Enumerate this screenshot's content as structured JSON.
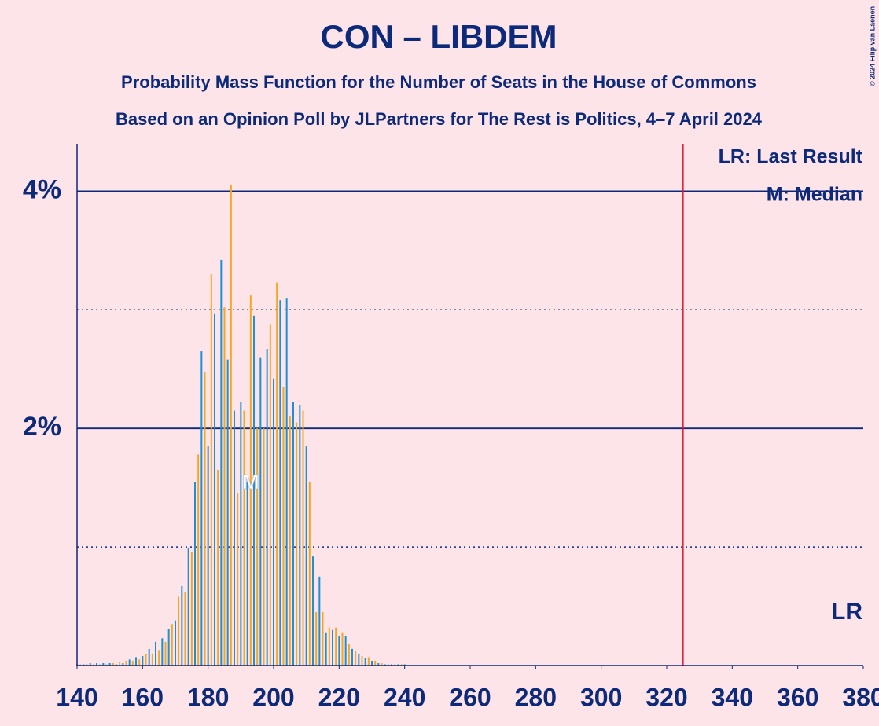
{
  "chart_data": {
    "type": "bar",
    "title": "CON – LIBDEM",
    "subtitle": "Probability Mass Function for the Number of Seats in the House of Commons",
    "subtitle2": "Based on an Opinion Poll by JLPartners for The Rest is Politics, 4–7 April 2024",
    "copyright": "© 2024 Filip van Laenen",
    "legend_last_result": "LR: Last Result",
    "legend_median": "M: Median",
    "last_result_label": "LR",
    "median_label": "M",
    "median": 193,
    "last_result": 325,
    "x": [
      140,
      141,
      142,
      143,
      144,
      145,
      146,
      147,
      148,
      149,
      150,
      151,
      152,
      153,
      154,
      155,
      156,
      157,
      158,
      159,
      160,
      161,
      162,
      163,
      164,
      165,
      166,
      167,
      168,
      169,
      170,
      171,
      172,
      173,
      174,
      175,
      176,
      177,
      178,
      179,
      180,
      181,
      182,
      183,
      184,
      185,
      186,
      187,
      188,
      189,
      190,
      191,
      192,
      193,
      194,
      195,
      196,
      197,
      198,
      199,
      200,
      201,
      202,
      203,
      204,
      205,
      206,
      207,
      208,
      209,
      210,
      211,
      212,
      213,
      214,
      215,
      216,
      217,
      218,
      219,
      220,
      221,
      222,
      223,
      224,
      225,
      226,
      227,
      228,
      229,
      230,
      231,
      232,
      233,
      234,
      235,
      236,
      237,
      238,
      239,
      240
    ],
    "values": [
      0.01,
      0.01,
      0.01,
      0.01,
      0.02,
      0.01,
      0.02,
      0.01,
      0.02,
      0.01,
      0.02,
      0.02,
      0.01,
      0.03,
      0.02,
      0.04,
      0.05,
      0.04,
      0.07,
      0.05,
      0.08,
      0.1,
      0.14,
      0.1,
      0.2,
      0.13,
      0.23,
      0.2,
      0.31,
      0.35,
      0.38,
      0.58,
      0.67,
      0.62,
      0.99,
      0.96,
      1.55,
      1.78,
      2.65,
      2.47,
      1.85,
      3.3,
      2.97,
      1.65,
      3.42,
      3.02,
      2.58,
      4.05,
      2.15,
      1.45,
      2.22,
      2.15,
      1.55,
      3.12,
      2.95,
      2.0,
      2.6,
      2.0,
      2.67,
      2.88,
      2.42,
      3.23,
      3.08,
      2.35,
      3.1,
      2.1,
      2.22,
      2.05,
      2.2,
      2.15,
      1.85,
      1.55,
      0.92,
      0.45,
      0.75,
      0.45,
      0.28,
      0.32,
      0.3,
      0.32,
      0.25,
      0.28,
      0.25,
      0.18,
      0.14,
      0.12,
      0.1,
      0.08,
      0.06,
      0.07,
      0.04,
      0.04,
      0.02,
      0.02,
      0.01,
      0.01,
      0.01,
      0.01,
      0.01,
      0.01,
      0.01
    ],
    "colors": [
      "#1f8fd6",
      "#f5a623"
    ],
    "xlim": [
      140,
      380
    ],
    "xticks": [
      140,
      160,
      180,
      200,
      220,
      240,
      260,
      280,
      300,
      320,
      340,
      360,
      380
    ],
    "ylim": [
      0,
      4.4
    ],
    "yticks": [
      {
        "value": 2,
        "label": "2%"
      },
      {
        "value": 4,
        "label": "4%"
      }
    ],
    "minor_yticks": [
      1,
      3
    ],
    "grid": true
  }
}
